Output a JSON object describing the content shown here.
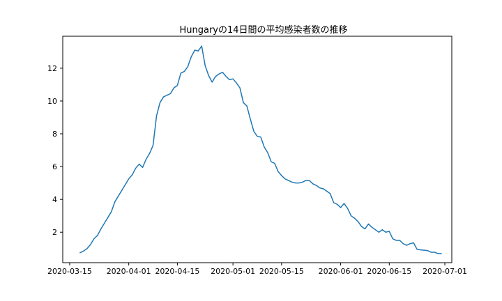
{
  "chart_data": {
    "type": "line",
    "title": "Hungaryの14日間の平均感染者数の推移",
    "xlabel": "",
    "ylabel": "",
    "x_ticks": [
      "2020-03-15",
      "2020-04-01",
      "2020-04-15",
      "2020-05-01",
      "2020-05-15",
      "2020-06-01",
      "2020-06-15",
      "2020-07-01"
    ],
    "y_ticks": [
      2,
      4,
      6,
      8,
      10,
      12
    ],
    "xlim": [
      "2020-03-13",
      "2020-07-03"
    ],
    "ylim": [
      0.14,
      13.95
    ],
    "grid": false,
    "series": [
      {
        "color": "#1f77b4",
        "x": [
          "2020-03-18",
          "2020-03-19",
          "2020-03-20",
          "2020-03-21",
          "2020-03-22",
          "2020-03-23",
          "2020-03-24",
          "2020-03-25",
          "2020-03-26",
          "2020-03-27",
          "2020-03-28",
          "2020-03-29",
          "2020-03-30",
          "2020-03-31",
          "2020-04-01",
          "2020-04-02",
          "2020-04-03",
          "2020-04-04",
          "2020-04-05",
          "2020-04-06",
          "2020-04-07",
          "2020-04-08",
          "2020-04-09",
          "2020-04-10",
          "2020-04-11",
          "2020-04-12",
          "2020-04-13",
          "2020-04-14",
          "2020-04-15",
          "2020-04-16",
          "2020-04-17",
          "2020-04-18",
          "2020-04-19",
          "2020-04-20",
          "2020-04-21",
          "2020-04-22",
          "2020-04-23",
          "2020-04-24",
          "2020-04-25",
          "2020-04-26",
          "2020-04-27",
          "2020-04-28",
          "2020-04-29",
          "2020-04-30",
          "2020-05-01",
          "2020-05-02",
          "2020-05-03",
          "2020-05-04",
          "2020-05-05",
          "2020-05-06",
          "2020-05-07",
          "2020-05-08",
          "2020-05-09",
          "2020-05-10",
          "2020-05-11",
          "2020-05-12",
          "2020-05-13",
          "2020-05-14",
          "2020-05-15",
          "2020-05-16",
          "2020-05-17",
          "2020-05-18",
          "2020-05-19",
          "2020-05-20",
          "2020-05-21",
          "2020-05-22",
          "2020-05-23",
          "2020-05-24",
          "2020-05-25",
          "2020-05-26",
          "2020-05-27",
          "2020-05-28",
          "2020-05-29",
          "2020-05-30",
          "2020-05-31",
          "2020-06-01",
          "2020-06-02",
          "2020-06-03",
          "2020-06-04",
          "2020-06-05",
          "2020-06-06",
          "2020-06-07",
          "2020-06-08",
          "2020-06-09",
          "2020-06-10",
          "2020-06-11",
          "2020-06-12",
          "2020-06-13",
          "2020-06-14",
          "2020-06-15",
          "2020-06-16",
          "2020-06-17",
          "2020-06-18",
          "2020-06-19",
          "2020-06-20",
          "2020-06-21",
          "2020-06-22",
          "2020-06-23",
          "2020-06-24",
          "2020-06-25",
          "2020-06-26",
          "2020-06-27",
          "2020-06-28",
          "2020-06-29",
          "2020-06-30"
        ],
        "y": [
          0.75,
          0.85,
          1.0,
          1.25,
          1.6,
          1.8,
          2.2,
          2.55,
          2.9,
          3.25,
          3.85,
          4.2,
          4.55,
          4.9,
          5.25,
          5.5,
          5.9,
          6.15,
          5.95,
          6.45,
          6.8,
          7.3,
          9.1,
          9.9,
          10.25,
          10.35,
          10.45,
          10.8,
          10.95,
          11.7,
          11.8,
          12.1,
          12.7,
          13.1,
          13.05,
          13.35,
          12.15,
          11.55,
          11.15,
          11.5,
          11.65,
          11.75,
          11.5,
          11.3,
          11.35,
          11.1,
          10.8,
          9.9,
          9.7,
          8.9,
          8.15,
          7.85,
          7.8,
          7.2,
          6.85,
          6.3,
          6.2,
          5.7,
          5.45,
          5.25,
          5.15,
          5.05,
          5.0,
          5.0,
          5.05,
          5.15,
          5.15,
          4.95,
          4.85,
          4.7,
          4.65,
          4.5,
          4.35,
          3.8,
          3.7,
          3.5,
          3.75,
          3.45,
          3.0,
          2.85,
          2.65,
          2.35,
          2.2,
          2.5,
          2.3,
          2.15,
          2.0,
          2.15,
          2.0,
          2.05,
          1.6,
          1.5,
          1.5,
          1.3,
          1.2,
          1.3,
          1.35,
          0.95,
          0.92,
          0.9,
          0.88,
          0.78,
          0.78,
          0.7,
          0.7
        ]
      }
    ]
  }
}
